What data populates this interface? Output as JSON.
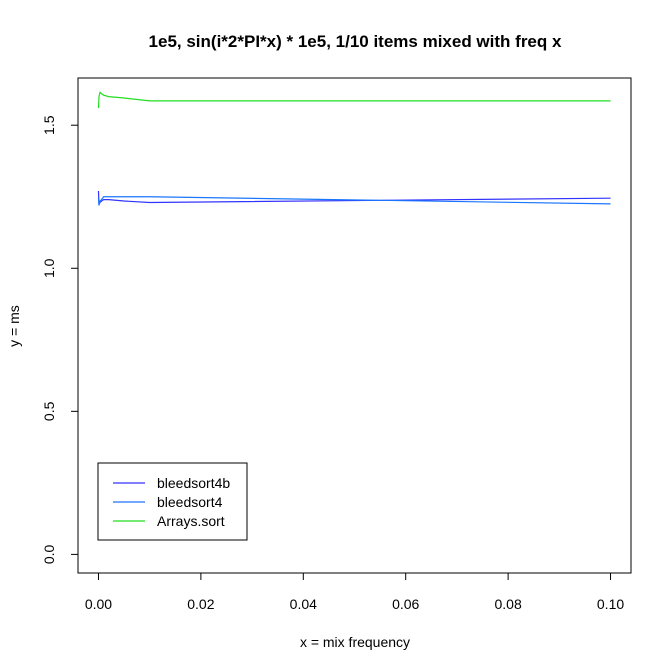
{
  "chart_data": {
    "type": "line",
    "title": "1e5, sin(i*2*PI*x) * 1e5, 1/10 items mixed with freq x",
    "xlabel": "x = mix frequency",
    "ylabel": "y = ms",
    "xlim": [
      -0.004,
      0.104
    ],
    "ylim": [
      -0.065,
      1.665
    ],
    "xticks": [
      0.0,
      0.02,
      0.04,
      0.06,
      0.08,
      0.1
    ],
    "xtick_labels": [
      "0.00",
      "0.02",
      "0.04",
      "0.06",
      "0.08",
      "0.10"
    ],
    "yticks": [
      0.0,
      0.5,
      1.0,
      1.5
    ],
    "ytick_labels": [
      "0.0",
      "0.5",
      "1.0",
      "1.5"
    ],
    "grid": false,
    "legend_position": "bottom-left",
    "series": [
      {
        "name": "bleedsort4b",
        "color": "#3333ff",
        "x": [
          0.0,
          0.0001,
          0.0003,
          0.0006,
          0.001,
          0.002,
          0.005,
          0.01,
          0.1
        ],
        "y": [
          1.27,
          1.225,
          1.23,
          1.235,
          1.24,
          1.24,
          1.235,
          1.23,
          1.245
        ]
      },
      {
        "name": "bleedsort4",
        "color": "#1a75ff",
        "x": [
          0.0,
          0.0001,
          0.0003,
          0.0006,
          0.001,
          0.002,
          0.005,
          0.01,
          0.1
        ],
        "y": [
          1.245,
          1.22,
          1.235,
          1.24,
          1.25,
          1.25,
          1.25,
          1.25,
          1.225
        ]
      },
      {
        "name": "Arrays.sort",
        "color": "#22dd22",
        "x": [
          0.0,
          0.0001,
          0.0003,
          0.0006,
          0.001,
          0.002,
          0.005,
          0.01,
          0.1
        ],
        "y": [
          1.56,
          1.6,
          1.615,
          1.61,
          1.605,
          1.6,
          1.595,
          1.585,
          1.585
        ]
      }
    ]
  }
}
